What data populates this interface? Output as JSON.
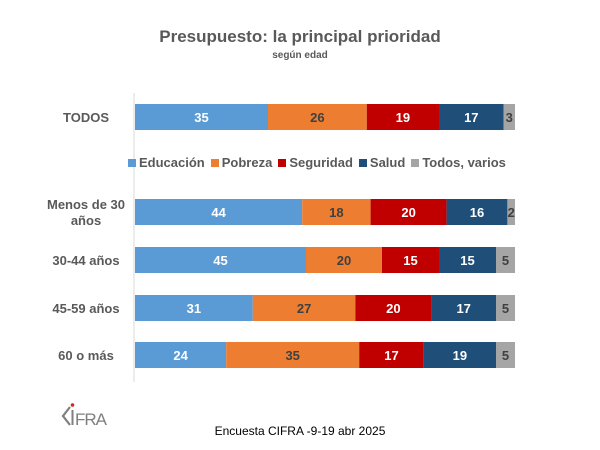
{
  "chart_data": {
    "type": "bar",
    "orientation": "horizontal",
    "stacked": true,
    "title": "Presupuesto: la principal prioridad",
    "subtitle": "según edad",
    "xlabel": "",
    "ylabel": "",
    "xlim": [
      0,
      100
    ],
    "grid": false,
    "legend_position": "between TODOS and age groups",
    "categories": [
      "TODOS",
      "Menos de 30 años",
      "30-44 años",
      "45-59 años",
      "60 o más"
    ],
    "series": [
      {
        "name": "Educación",
        "color": "#5B9BD5",
        "label_color": "#ffffff",
        "values": [
          35,
          44,
          45,
          31,
          24
        ]
      },
      {
        "name": "Pobreza",
        "color": "#ED7D31",
        "label_color": "#404040",
        "values": [
          26,
          18,
          20,
          27,
          35
        ]
      },
      {
        "name": "Seguridad",
        "color": "#C00000",
        "label_color": "#ffffff",
        "values": [
          19,
          20,
          15,
          20,
          17
        ]
      },
      {
        "name": "Salud",
        "color": "#1F4E79",
        "label_color": "#ffffff",
        "values": [
          17,
          16,
          15,
          17,
          19
        ]
      },
      {
        "name": "Todos, varios",
        "color": "#A5A5A5",
        "label_color": "#404040",
        "values": [
          3,
          2,
          5,
          5,
          5
        ]
      }
    ]
  },
  "category_display": [
    [
      "TODOS"
    ],
    [
      "Menos de 30",
      "años"
    ],
    [
      "30-44 años"
    ],
    [
      "45-59 años"
    ],
    [
      "60 o más"
    ]
  ],
  "logo_text": "CIFRA",
  "footer": "Encuesta CIFRA -9-19 abr 2025"
}
